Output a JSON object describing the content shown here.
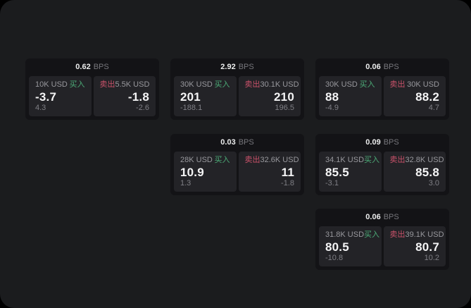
{
  "labels": {
    "bps_suffix": "BPS",
    "buy": "买入",
    "sell": "卖出"
  },
  "colors": {
    "page_outside": "#000000",
    "page_surface": "#1b1c1e",
    "card_bg": "#131316",
    "panel_bg": "#232327",
    "buy_green": "#4cab77",
    "sell_red": "#c9526a",
    "label_gray": "#98989d",
    "value_white": "#f4f4f5",
    "sub_gray": "#7f7f85"
  },
  "cards": [
    {
      "bps": "0.62",
      "buy": {
        "amount": "10K USD",
        "value": "-3.7",
        "sub": "4.3"
      },
      "sell": {
        "amount": "5.5K USD",
        "value": "-1.8",
        "sub": "-2.6"
      }
    },
    {
      "bps": "2.92",
      "buy": {
        "amount": "30K USD",
        "value": "201",
        "sub": "-188.1"
      },
      "sell": {
        "amount": "30.1K USD",
        "value": "210",
        "sub": "196.5"
      }
    },
    {
      "bps": "0.06",
      "buy": {
        "amount": "30K USD",
        "value": "88",
        "sub": "-4.9"
      },
      "sell": {
        "amount": "30K USD",
        "value": "88.2",
        "sub": "4.7"
      }
    },
    {
      "bps": "0.03",
      "buy": {
        "amount": "28K USD",
        "value": "10.9",
        "sub": "1.3"
      },
      "sell": {
        "amount": "32.6K USD",
        "value": "11",
        "sub": "-1.8"
      }
    },
    {
      "bps": "0.09",
      "buy": {
        "amount": "34.1K USD",
        "value": "85.5",
        "sub": "-3.1"
      },
      "sell": {
        "amount": "32.8K USD",
        "value": "85.8",
        "sub": "3.0"
      }
    },
    {
      "bps": "0.06",
      "buy": {
        "amount": "31.8K USD",
        "value": "80.5",
        "sub": "-10.8"
      },
      "sell": {
        "amount": "39.1K USD",
        "value": "80.7",
        "sub": "10.2"
      }
    }
  ]
}
